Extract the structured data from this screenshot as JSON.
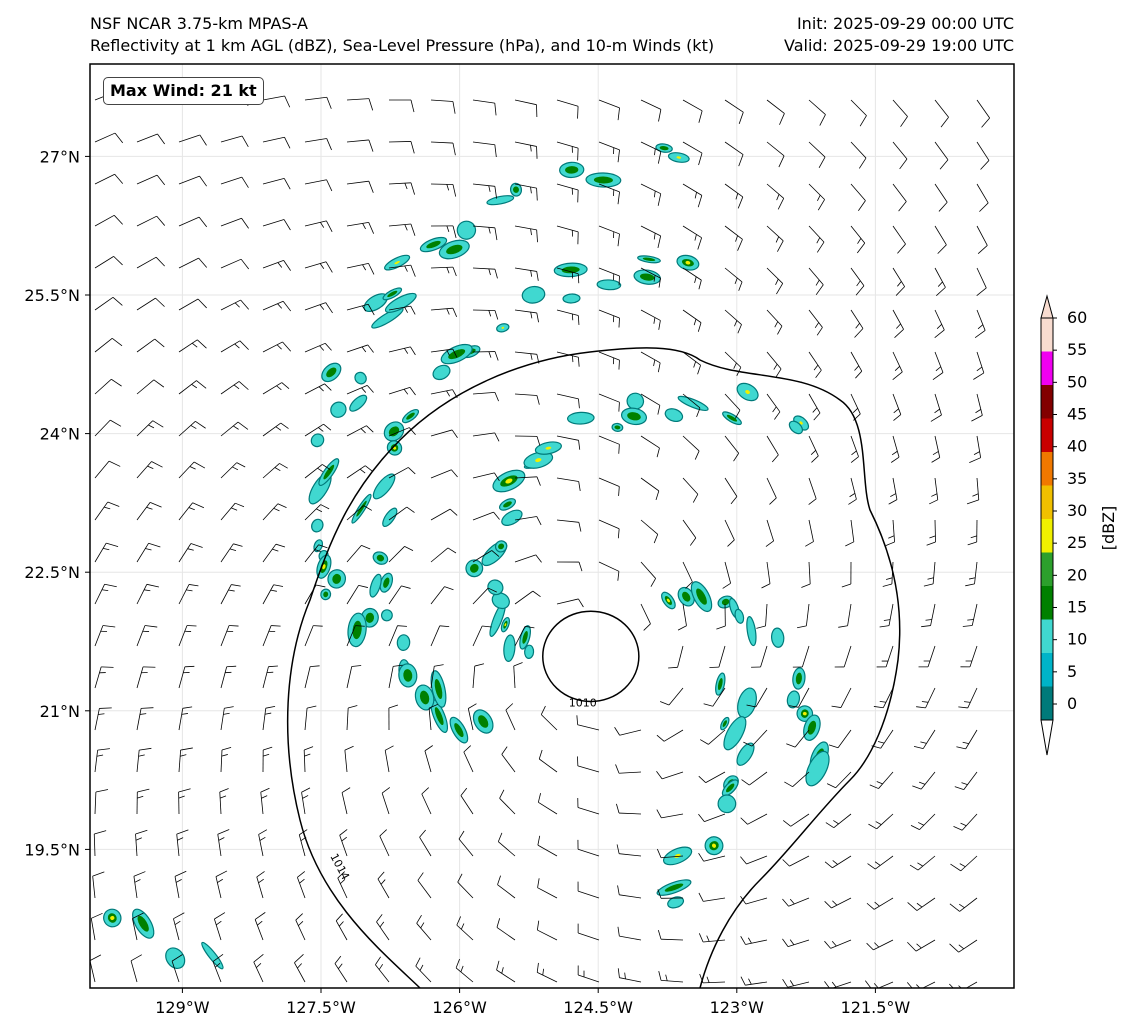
{
  "header": {
    "model": "NSF NCAR 3.75-km MPAS-A",
    "fields": "Reflectivity at 1 km AGL (dBZ), Sea-Level Pressure (hPa), and 10-m Winds (kt)",
    "init": "Init: 2025-09-29 00:00 UTC",
    "valid": "Valid: 2025-09-29 19:00 UTC"
  },
  "max_wind_label": "Max Wind: 21 kt",
  "map": {
    "lon_range": [
      -130.0,
      -120.0
    ],
    "lat_range": [
      18.0,
      28.0
    ],
    "lon_ticks": [
      {
        "value": -129.0,
        "label": "129°W"
      },
      {
        "value": -127.5,
        "label": "127.5°W"
      },
      {
        "value": -126.0,
        "label": "126°W"
      },
      {
        "value": -124.5,
        "label": "124.5°W"
      },
      {
        "value": -123.0,
        "label": "123°W"
      },
      {
        "value": -121.5,
        "label": "121.5°W"
      }
    ],
    "lat_ticks": [
      {
        "value": 27.0,
        "label": "27°N"
      },
      {
        "value": 25.5,
        "label": "25.5°N"
      },
      {
        "value": 24.0,
        "label": "24°N"
      },
      {
        "value": 22.5,
        "label": "22.5°N"
      },
      {
        "value": 21.0,
        "label": "21°N"
      },
      {
        "value": 19.5,
        "label": "19.5°N"
      }
    ],
    "storm_center": {
      "lon": -124.58,
      "lat": 21.6
    },
    "isobars": [
      {
        "value": 1010,
        "label": "1010",
        "radius_deg": 0.52
      },
      {
        "value": 1014,
        "label": "1014"
      }
    ]
  },
  "colorbar": {
    "label": "[dBZ]",
    "levels": [
      0,
      5,
      10,
      15,
      20,
      25,
      30,
      35,
      40,
      45,
      50,
      55,
      60
    ],
    "colors": [
      "#007a7a",
      "#00b4c8",
      "#40d8d0",
      "#008000",
      "#2ca02c",
      "#f0f000",
      "#f0c000",
      "#f07800",
      "#c80000",
      "#820000",
      "#f000f0",
      "#f8dcd0"
    ]
  }
}
